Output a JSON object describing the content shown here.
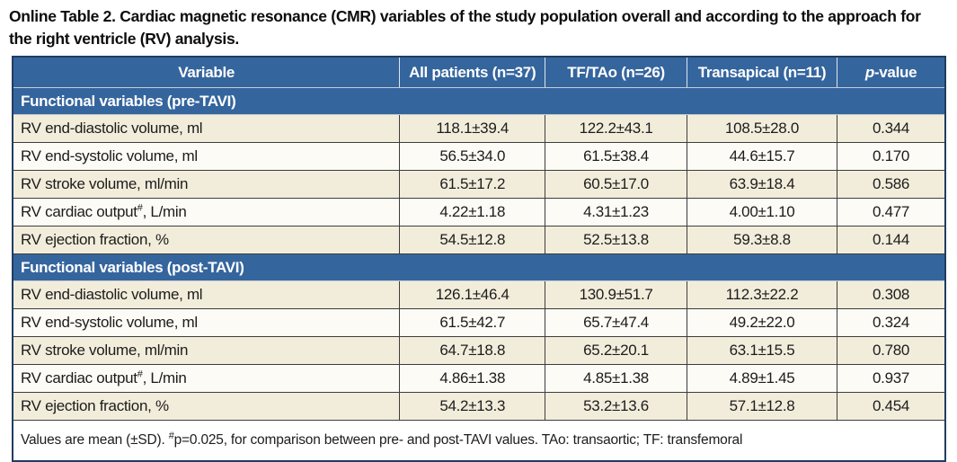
{
  "page": {
    "title": "Online Table 2. Cardiac magnetic resonance (CMR) variables of the study population overall and according to the approach for the right ventricle (RV) analysis."
  },
  "table": {
    "columns": {
      "variable": "Variable",
      "all_patients": "All patients (n=37)",
      "tf_tao": "TF/TAo (n=26)",
      "transapical": "Transapical (n=11)",
      "pvalue_italic": "p",
      "pvalue_rest": "-value"
    },
    "sections": [
      {
        "header": "Functional variables (pre-TAVI)",
        "rows": [
          {
            "label": "RV end-diastolic volume, ml",
            "sup": "",
            "label2": "",
            "values": [
              "118.1±39.4",
              "122.2±43.1",
              "108.5±28.0",
              "0.344"
            ]
          },
          {
            "label": "RV end-systolic volume, ml",
            "sup": "",
            "label2": "",
            "values": [
              "56.5±34.0",
              "61.5±38.4",
              "44.6±15.7",
              "0.170"
            ]
          },
          {
            "label": "RV stroke volume, ml/min",
            "sup": "",
            "label2": "",
            "values": [
              "61.5±17.2",
              "60.5±17.0",
              "63.9±18.4",
              "0.586"
            ]
          },
          {
            "label": "RV cardiac output",
            "sup": "#",
            "label2": ", L/min",
            "values": [
              "4.22±1.18",
              "4.31±1.23",
              "4.00±1.10",
              "0.477"
            ]
          },
          {
            "label": "RV ejection fraction, %",
            "sup": "",
            "label2": "",
            "values": [
              "54.5±12.8",
              "52.5±13.8",
              "59.3±8.8",
              "0.144"
            ]
          }
        ]
      },
      {
        "header": "Functional variables (post-TAVI)",
        "rows": [
          {
            "label": "RV end-diastolic volume, ml",
            "sup": "",
            "label2": "",
            "values": [
              "126.1±46.4",
              "130.9±51.7",
              "112.3±22.2",
              "0.308"
            ]
          },
          {
            "label": "RV end-systolic volume, ml",
            "sup": "",
            "label2": "",
            "values": [
              "61.5±42.7",
              "65.7±47.4",
              "49.2±22.0",
              "0.324"
            ]
          },
          {
            "label": "RV stroke volume, ml/min",
            "sup": "",
            "label2": "",
            "values": [
              "64.7±18.8",
              "65.2±20.1",
              "63.1±15.5",
              "0.780"
            ]
          },
          {
            "label": "RV cardiac output",
            "sup": "#",
            "label2": ", L/min",
            "values": [
              "4.86±1.38",
              "4.85±1.38",
              "4.89±1.45",
              "0.937"
            ]
          },
          {
            "label": "RV ejection fraction, %",
            "sup": "",
            "label2": "",
            "values": [
              "54.2±13.3",
              "53.2±13.6",
              "57.1±12.8",
              "0.454"
            ]
          }
        ]
      }
    ],
    "footnote": {
      "pre": "Values are mean (±SD). ",
      "sup": "#",
      "post": "p=0.025, for comparison between pre- and post-TAVI values. TAo: transaortic; TF: transfemoral"
    }
  },
  "colors": {
    "header_blue": "#35659d",
    "row_cream": "#f2eddb",
    "row_white": "#fcfbf5",
    "outer_border": "#203d60",
    "grid_line": "#3c3c3c",
    "header_text": "#ffffff"
  }
}
